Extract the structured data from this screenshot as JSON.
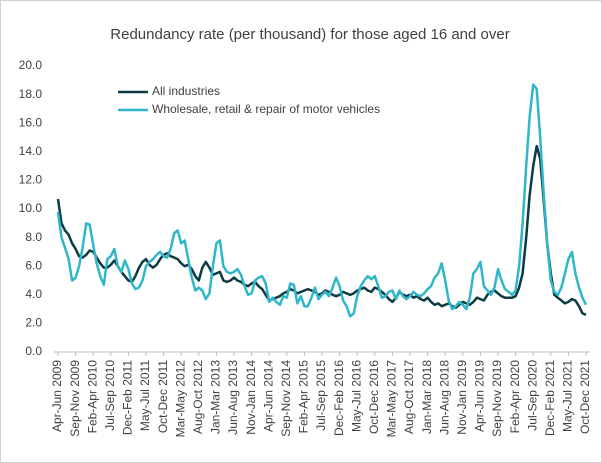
{
  "chart_data": {
    "type": "line",
    "title": "Redundancy rate (per thousand) for those aged 16 and over",
    "categories": [
      "Apr-Jun 2009",
      null,
      null,
      null,
      null,
      "Sep-Nov 2009",
      null,
      null,
      null,
      null,
      "Feb-Apr 2010",
      null,
      null,
      null,
      null,
      "Jul-Sep 2010",
      null,
      null,
      null,
      null,
      "Dec-Feb 2011",
      null,
      null,
      null,
      null,
      "May-Jul 2011",
      null,
      null,
      null,
      null,
      "Oct-Dec 2011",
      null,
      null,
      null,
      null,
      "Mar-May 2012",
      null,
      null,
      null,
      null,
      "Aug-Oct 2012",
      null,
      null,
      null,
      null,
      "Jan-Mar 2013",
      null,
      null,
      null,
      null,
      "Jun-Aug 2013",
      null,
      null,
      null,
      null,
      "Nov-Jan 2014",
      null,
      null,
      null,
      null,
      "Apr-Jun 2014",
      null,
      null,
      null,
      null,
      "Sep-Nov 2014",
      null,
      null,
      null,
      null,
      "Feb-Apr 2015",
      null,
      null,
      null,
      null,
      "Jul-Sep 2015",
      null,
      null,
      null,
      null,
      "Dec-Feb 2016",
      null,
      null,
      null,
      null,
      "May-Jul 2016",
      null,
      null,
      null,
      null,
      "Oct-Dec 2016",
      null,
      null,
      null,
      null,
      "Mar-May 2017",
      null,
      null,
      null,
      null,
      "Aug-Oct 2017",
      null,
      null,
      null,
      null,
      "Jan-Mar 2018",
      null,
      null,
      null,
      null,
      "Jun-Aug 2018",
      null,
      null,
      null,
      null,
      "Nov-Jan 2019",
      null,
      null,
      null,
      null,
      "Apr-Jun 2019",
      null,
      null,
      null,
      null,
      "Sep-Nov 2019",
      null,
      null,
      null,
      null,
      "Feb-Apr 2020",
      null,
      null,
      null,
      null,
      "Jul-Sep 2020",
      null,
      null,
      null,
      null,
      "Dec-Feb 2021",
      null,
      null,
      null,
      null,
      "May-Jul 2021",
      null,
      null,
      null,
      null,
      "Oct-Dec 2021"
    ],
    "series": [
      {
        "name": "All industries",
        "color": "#0d3b44",
        "values": [
          10.7,
          9.0,
          8.5,
          8.2,
          7.6,
          7.2,
          6.7,
          6.6,
          6.8,
          7.1,
          7.0,
          6.6,
          6.2,
          5.9,
          5.9,
          6.1,
          6.4,
          6.0,
          5.6,
          5.3,
          5.0,
          4.9,
          5.3,
          5.9,
          6.3,
          6.5,
          6.1,
          5.9,
          6.1,
          6.5,
          6.8,
          6.9,
          6.7,
          6.6,
          6.5,
          6.2,
          6.0,
          6.1,
          5.8,
          5.3,
          5.0,
          5.9,
          6.3,
          5.9,
          5.4,
          5.5,
          5.6,
          5.0,
          4.9,
          5.0,
          5.2,
          5.0,
          4.9,
          4.7,
          4.6,
          4.8,
          4.9,
          4.6,
          4.4,
          4.0,
          3.6,
          3.7,
          3.8,
          3.9,
          4.1,
          4.2,
          4.4,
          4.3,
          4.1,
          4.2,
          4.3,
          4.4,
          4.3,
          4.2,
          4.0,
          4.1,
          4.3,
          4.2,
          4.0,
          3.9,
          4.0,
          4.2,
          4.1,
          4.0,
          4.1,
          4.3,
          4.4,
          4.5,
          4.3,
          4.2,
          4.5,
          4.4,
          4.2,
          4.0,
          3.7,
          3.5,
          3.8,
          4.2,
          4.0,
          3.9,
          4.0,
          3.8,
          3.9,
          3.7,
          3.6,
          3.8,
          3.5,
          3.3,
          3.4,
          3.2,
          3.3,
          3.4,
          3.2,
          3.1,
          3.3,
          3.5,
          3.4,
          3.3,
          3.5,
          3.8,
          3.7,
          3.6,
          4.0,
          4.2,
          4.3,
          4.1,
          3.9,
          3.8,
          3.8,
          3.8,
          3.9,
          4.5,
          5.5,
          8.0,
          11.0,
          13.0,
          14.4,
          13.5,
          10.5,
          7.5,
          5.5,
          4.0,
          3.8,
          3.6,
          3.4,
          3.5,
          3.7,
          3.6,
          3.2,
          2.7,
          2.6
        ]
      },
      {
        "name": "Wholesale, retail & repair of motor vehicles",
        "color": "#2fb7c9",
        "values": [
          9.8,
          8.0,
          7.3,
          6.5,
          5.0,
          5.2,
          6.0,
          7.3,
          9.0,
          8.9,
          7.5,
          6.2,
          5.3,
          4.7,
          6.5,
          6.7,
          7.2,
          6.0,
          5.6,
          6.4,
          5.8,
          4.8,
          4.4,
          4.5,
          5.0,
          6.0,
          6.3,
          6.5,
          6.8,
          7.0,
          6.7,
          6.6,
          7.2,
          8.3,
          8.5,
          7.6,
          7.8,
          6.5,
          5.2,
          4.3,
          4.5,
          4.3,
          3.7,
          4.1,
          6.0,
          7.6,
          7.8,
          6.0,
          5.6,
          5.5,
          5.6,
          5.8,
          5.4,
          4.6,
          4.0,
          4.1,
          5.0,
          5.2,
          5.3,
          4.8,
          3.5,
          3.8,
          3.5,
          3.3,
          3.9,
          3.8,
          4.8,
          4.7,
          3.4,
          3.9,
          3.2,
          3.2,
          3.8,
          4.5,
          3.7,
          4.0,
          4.2,
          3.9,
          4.5,
          5.2,
          4.6,
          3.6,
          3.2,
          2.5,
          2.7,
          3.9,
          4.6,
          5.0,
          5.3,
          5.1,
          5.3,
          4.6,
          3.8,
          3.9,
          4.2,
          4.3,
          3.7,
          4.3,
          3.9,
          3.7,
          3.9,
          4.2,
          4.0,
          3.9,
          4.1,
          4.4,
          4.6,
          5.2,
          5.5,
          6.2,
          5.0,
          3.6,
          3.0,
          3.2,
          3.5,
          3.3,
          3.0,
          3.8,
          5.5,
          5.8,
          6.3,
          4.6,
          4.3,
          4.0,
          4.5,
          5.8,
          5.0,
          4.4,
          4.2,
          4.0,
          4.3,
          6.0,
          9.0,
          13.0,
          16.5,
          18.7,
          18.4,
          15.0,
          11.0,
          7.5,
          5.0,
          4.2,
          4.0,
          4.5,
          5.5,
          6.5,
          7.0,
          5.5,
          4.5,
          3.8,
          3.3
        ]
      }
    ],
    "ylim": [
      0,
      20
    ],
    "yticks": [
      {
        "value": 0,
        "label": "0.0"
      },
      {
        "value": 2,
        "label": "2.0"
      },
      {
        "value": 4,
        "label": "4.0"
      },
      {
        "value": 6,
        "label": "6.0"
      },
      {
        "value": 8,
        "label": "8.0"
      },
      {
        "value": 10,
        "label": "10.0"
      },
      {
        "value": 12,
        "label": "12.0"
      },
      {
        "value": 14,
        "label": "14.0"
      },
      {
        "value": 16,
        "label": "16.0"
      },
      {
        "value": 18,
        "label": "18.0"
      },
      {
        "value": 20,
        "label": "20.0"
      }
    ],
    "grid": false,
    "legend": "top-left"
  }
}
